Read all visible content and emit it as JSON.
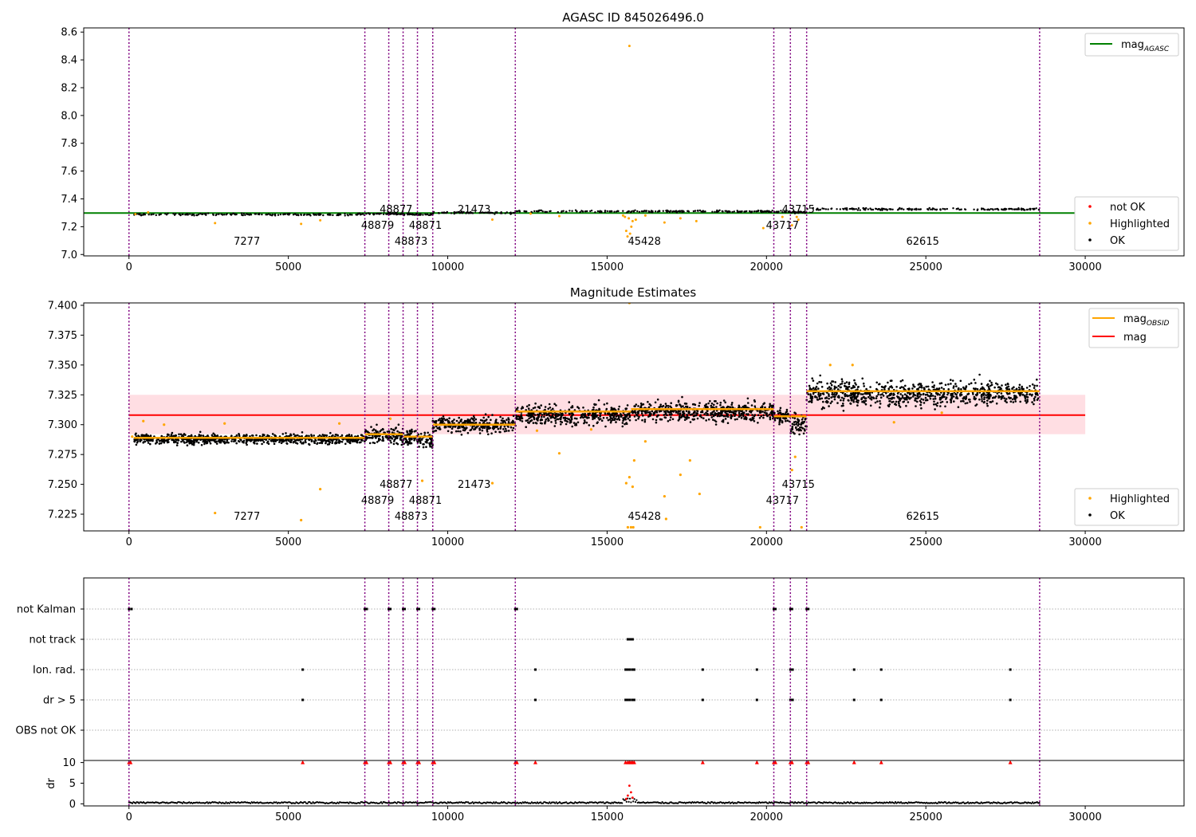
{
  "chart_data": [
    {
      "type": "scatter",
      "title": "AGASC ID 845026496.0",
      "xlim": [
        -1420,
        33100
      ],
      "ylim": [
        6.99,
        8.63
      ],
      "xticks": [
        "0",
        "5000",
        "10000",
        "15000",
        "20000",
        "25000",
        "30000"
      ],
      "yticks": [
        "7.0",
        "7.2",
        "7.4",
        "7.6",
        "7.8",
        "8.0",
        "8.2",
        "8.4",
        "8.6"
      ],
      "grid": false,
      "reference_line": {
        "name_base": "mag",
        "name_sub": "AGASC",
        "value": 7.298,
        "color": "#008000",
        "x_range": [
          -1420,
          30000
        ]
      },
      "series": [
        {
          "name": "not OK",
          "color": "#ff0000"
        },
        {
          "name": "Highlighted",
          "color": "#ffa500"
        },
        {
          "name": "OK",
          "color": "#000000"
        }
      ],
      "legend": [
        "top-right",
        "bottom-right"
      ],
      "obsid_boundaries": [
        0,
        7400,
        8150,
        8600,
        9050,
        9530,
        12120,
        20230,
        20750,
        21260,
        28570
      ],
      "obsid_labels": [
        {
          "label": "7277",
          "x": 3700,
          "row": 0
        },
        {
          "label": "48879",
          "x": 7800,
          "row": 1
        },
        {
          "label": "48877",
          "x": 8380,
          "row": 2
        },
        {
          "label": "48873",
          "x": 8850,
          "row": 0
        },
        {
          "label": "48871",
          "x": 9300,
          "row": 1
        },
        {
          "label": "21473",
          "x": 10830,
          "row": 2
        },
        {
          "label": "45428",
          "x": 16170,
          "row": 0
        },
        {
          "label": "43717",
          "x": 20500,
          "row": 1
        },
        {
          "label": "43715",
          "x": 21000,
          "row": 2
        },
        {
          "label": "62615",
          "x": 24900,
          "row": 0
        }
      ],
      "bands": [
        {
          "x0": 150,
          "x1": 7400,
          "center": 7.288
        },
        {
          "x0": 7400,
          "x1": 8150,
          "center": 7.292
        },
        {
          "x0": 8150,
          "x1": 8600,
          "center": 7.292
        },
        {
          "x0": 8600,
          "x1": 9050,
          "center": 7.29
        },
        {
          "x0": 9050,
          "x1": 9530,
          "center": 7.288
        },
        {
          "x0": 9530,
          "x1": 12120,
          "center": 7.3
        },
        {
          "x0": 12120,
          "x1": 20230,
          "center": 7.31
        },
        {
          "x0": 20230,
          "x1": 20750,
          "center": 7.306
        },
        {
          "x0": 20750,
          "x1": 21260,
          "center": 7.303
        },
        {
          "x0": 21260,
          "x1": 28570,
          "center": 7.326
        }
      ],
      "highlighted_points": [
        [
          15700,
          8.5
        ],
        [
          15640,
          7.13
        ],
        [
          15720,
          7.15
        ],
        [
          15600,
          7.17
        ],
        [
          15760,
          7.2
        ],
        [
          15800,
          7.24
        ],
        [
          15680,
          7.26
        ],
        [
          15560,
          7.27
        ],
        [
          15900,
          7.25
        ],
        [
          15500,
          7.28
        ],
        [
          16200,
          7.28
        ],
        [
          16800,
          7.23
        ],
        [
          17300,
          7.26
        ],
        [
          17800,
          7.24
        ],
        [
          19900,
          7.19
        ],
        [
          20800,
          7.21
        ],
        [
          21000,
          7.25
        ],
        [
          20950,
          7.27
        ],
        [
          20500,
          7.27
        ],
        [
          2700,
          7.226
        ],
        [
          5400,
          7.22
        ],
        [
          6000,
          7.246
        ],
        [
          11400,
          7.251
        ],
        [
          13500,
          7.276
        ],
        [
          12600,
          7.294
        ],
        [
          200,
          7.29
        ],
        [
          600,
          7.303
        ]
      ]
    },
    {
      "type": "scatter",
      "title": "Magnitude Estimates",
      "xlim": [
        -1420,
        33100
      ],
      "ylim": [
        7.211,
        7.402
      ],
      "xticks": [
        "0",
        "5000",
        "10000",
        "15000",
        "20000",
        "25000",
        "30000"
      ],
      "yticks": [
        "7.225",
        "7.250",
        "7.275",
        "7.300",
        "7.325",
        "7.350",
        "7.375",
        "7.400"
      ],
      "grid": false,
      "mean_mag": {
        "name": "mag",
        "value": 7.308,
        "band": [
          7.292,
          7.325
        ],
        "color": "#ff0000",
        "x_range": [
          0,
          30000
        ]
      },
      "obsid_mag": {
        "name_base": "mag",
        "name_sub": "OBSID",
        "color": "#ffa500"
      },
      "series": [
        {
          "name": "Highlighted",
          "color": "#ffa500"
        },
        {
          "name": "OK",
          "color": "#000000"
        }
      ],
      "legend": [
        "top-right",
        "bottom-right"
      ],
      "bands": [
        {
          "x0": 150,
          "x1": 7400,
          "center": 7.288,
          "hw": 0.007,
          "mag": 7.289
        },
        {
          "x0": 7400,
          "x1": 8150,
          "center": 7.291,
          "hw": 0.011,
          "mag": 7.292
        },
        {
          "x0": 8150,
          "x1": 8600,
          "center": 7.291,
          "hw": 0.011,
          "mag": 7.292
        },
        {
          "x0": 8600,
          "x1": 9050,
          "center": 7.289,
          "hw": 0.012,
          "mag": 7.29
        },
        {
          "x0": 9050,
          "x1": 9530,
          "center": 7.287,
          "hw": 0.013,
          "mag": 7.29
        },
        {
          "x0": 9530,
          "x1": 12120,
          "center": 7.3,
          "hw": 0.011,
          "mag": 7.3
        },
        {
          "x0": 12120,
          "x1": 15750,
          "center": 7.308,
          "hw": 0.015,
          "mag": 7.311
        },
        {
          "x0": 15750,
          "x1": 20230,
          "center": 7.311,
          "hw": 0.014,
          "mag": 7.313
        },
        {
          "x0": 20230,
          "x1": 20750,
          "center": 7.307,
          "hw": 0.01,
          "mag": 7.307
        },
        {
          "x0": 20750,
          "x1": 21260,
          "center": 7.3,
          "hw": 0.014,
          "mag": 7.307
        },
        {
          "x0": 21260,
          "x1": 28570,
          "center": 7.326,
          "hw": 0.018,
          "mag": 7.328
        }
      ],
      "highlighted_points": [
        [
          15700,
          7.402
        ],
        [
          2700,
          7.226
        ],
        [
          5400,
          7.22
        ],
        [
          6000,
          7.246
        ],
        [
          11400,
          7.251
        ],
        [
          13500,
          7.276
        ],
        [
          9200,
          7.253
        ],
        [
          15600,
          7.251
        ],
        [
          15800,
          7.248
        ],
        [
          15700,
          7.256
        ],
        [
          15850,
          7.27
        ],
        [
          16200,
          7.286
        ],
        [
          16800,
          7.24
        ],
        [
          17300,
          7.258
        ],
        [
          17600,
          7.27
        ],
        [
          17900,
          7.242
        ],
        [
          15650,
          7.214
        ],
        [
          15750,
          7.214
        ],
        [
          15820,
          7.214
        ],
        [
          16850,
          7.221
        ],
        [
          19800,
          7.214
        ],
        [
          20800,
          7.262
        ],
        [
          20900,
          7.273
        ],
        [
          21100,
          7.214
        ],
        [
          24000,
          7.302
        ],
        [
          25500,
          7.31
        ],
        [
          22000,
          7.35
        ],
        [
          22700,
          7.35
        ],
        [
          100,
          7.29
        ],
        [
          450,
          7.303
        ],
        [
          1100,
          7.3
        ],
        [
          3000,
          7.301
        ],
        [
          6600,
          7.301
        ],
        [
          8200,
          7.305
        ],
        [
          12800,
          7.295
        ],
        [
          14500,
          7.296
        ]
      ],
      "obsid_labels": [
        {
          "label": "7277",
          "x": 3700,
          "row": 0
        },
        {
          "label": "48879",
          "x": 7800,
          "row": 1
        },
        {
          "label": "48877",
          "x": 8380,
          "row": 2
        },
        {
          "label": "48873",
          "x": 8850,
          "row": 0
        },
        {
          "label": "48871",
          "x": 9300,
          "row": 1
        },
        {
          "label": "21473",
          "x": 10830,
          "row": 2
        },
        {
          "label": "45428",
          "x": 16170,
          "row": 0
        },
        {
          "label": "43717",
          "x": 20500,
          "row": 1
        },
        {
          "label": "43715",
          "x": 21000,
          "row": 2
        },
        {
          "label": "62615",
          "x": 24900,
          "row": 0
        }
      ]
    },
    {
      "type": "scatter",
      "title": "",
      "xlim": [
        -1420,
        33100
      ],
      "categories": [
        "not Kalman",
        "not track",
        "Ion. rad.",
        "dr > 5",
        "OBS not OK"
      ],
      "flags": {
        "not Kalman": [
          0,
          80,
          7400,
          7460,
          8150,
          8200,
          8600,
          8650,
          9050,
          9100,
          9530,
          9580,
          12120,
          12170,
          20230,
          20280,
          20750,
          20800,
          21260,
          21310
        ],
        "not track": [
          15650,
          15700,
          15750,
          15800
        ],
        "Ion. rad.": [
          5450,
          12750,
          15580,
          15650,
          15720,
          15800,
          15850,
          18000,
          19700,
          20750,
          20820,
          22750,
          23600,
          27650
        ],
        "dr > 5": [
          5450,
          12750,
          15580,
          15650,
          15720,
          15800,
          15850,
          18000,
          19700,
          20750,
          20820,
          22750,
          23600,
          27650
        ],
        "OBS not OK": []
      },
      "ylabel": "dr",
      "dr_yticks": [
        "0",
        "5",
        "10"
      ],
      "dr_ylim": [
        -0.5,
        10.5
      ],
      "dr_red_points": [
        0,
        50,
        7400,
        7450,
        8150,
        8200,
        8600,
        8650,
        9050,
        9100,
        9530,
        9580,
        12120,
        12170,
        12750,
        15580,
        15650,
        15700,
        15750,
        15800,
        15850,
        18000,
        19700,
        20230,
        20280,
        20750,
        20800,
        21260,
        21310,
        22750,
        23600,
        27650,
        5450
      ],
      "dr_spike": [
        [
          15600,
          1.2
        ],
        [
          15650,
          2.0
        ],
        [
          15700,
          4.4
        ],
        [
          15750,
          2.8
        ],
        [
          15800,
          1.5
        ]
      ],
      "xticks": [
        "0",
        "5000",
        "10000",
        "15000",
        "20000",
        "25000",
        "30000"
      ]
    }
  ],
  "colors": {
    "obsid_line": "#800080",
    "ok": "#000000",
    "highlighted": "#ffa500",
    "not_ok": "#ff0000",
    "agasc_line": "#008000",
    "mean_line": "#ff0000",
    "band_fill": "#ffb6c1",
    "grid": "#b0b0b0"
  }
}
